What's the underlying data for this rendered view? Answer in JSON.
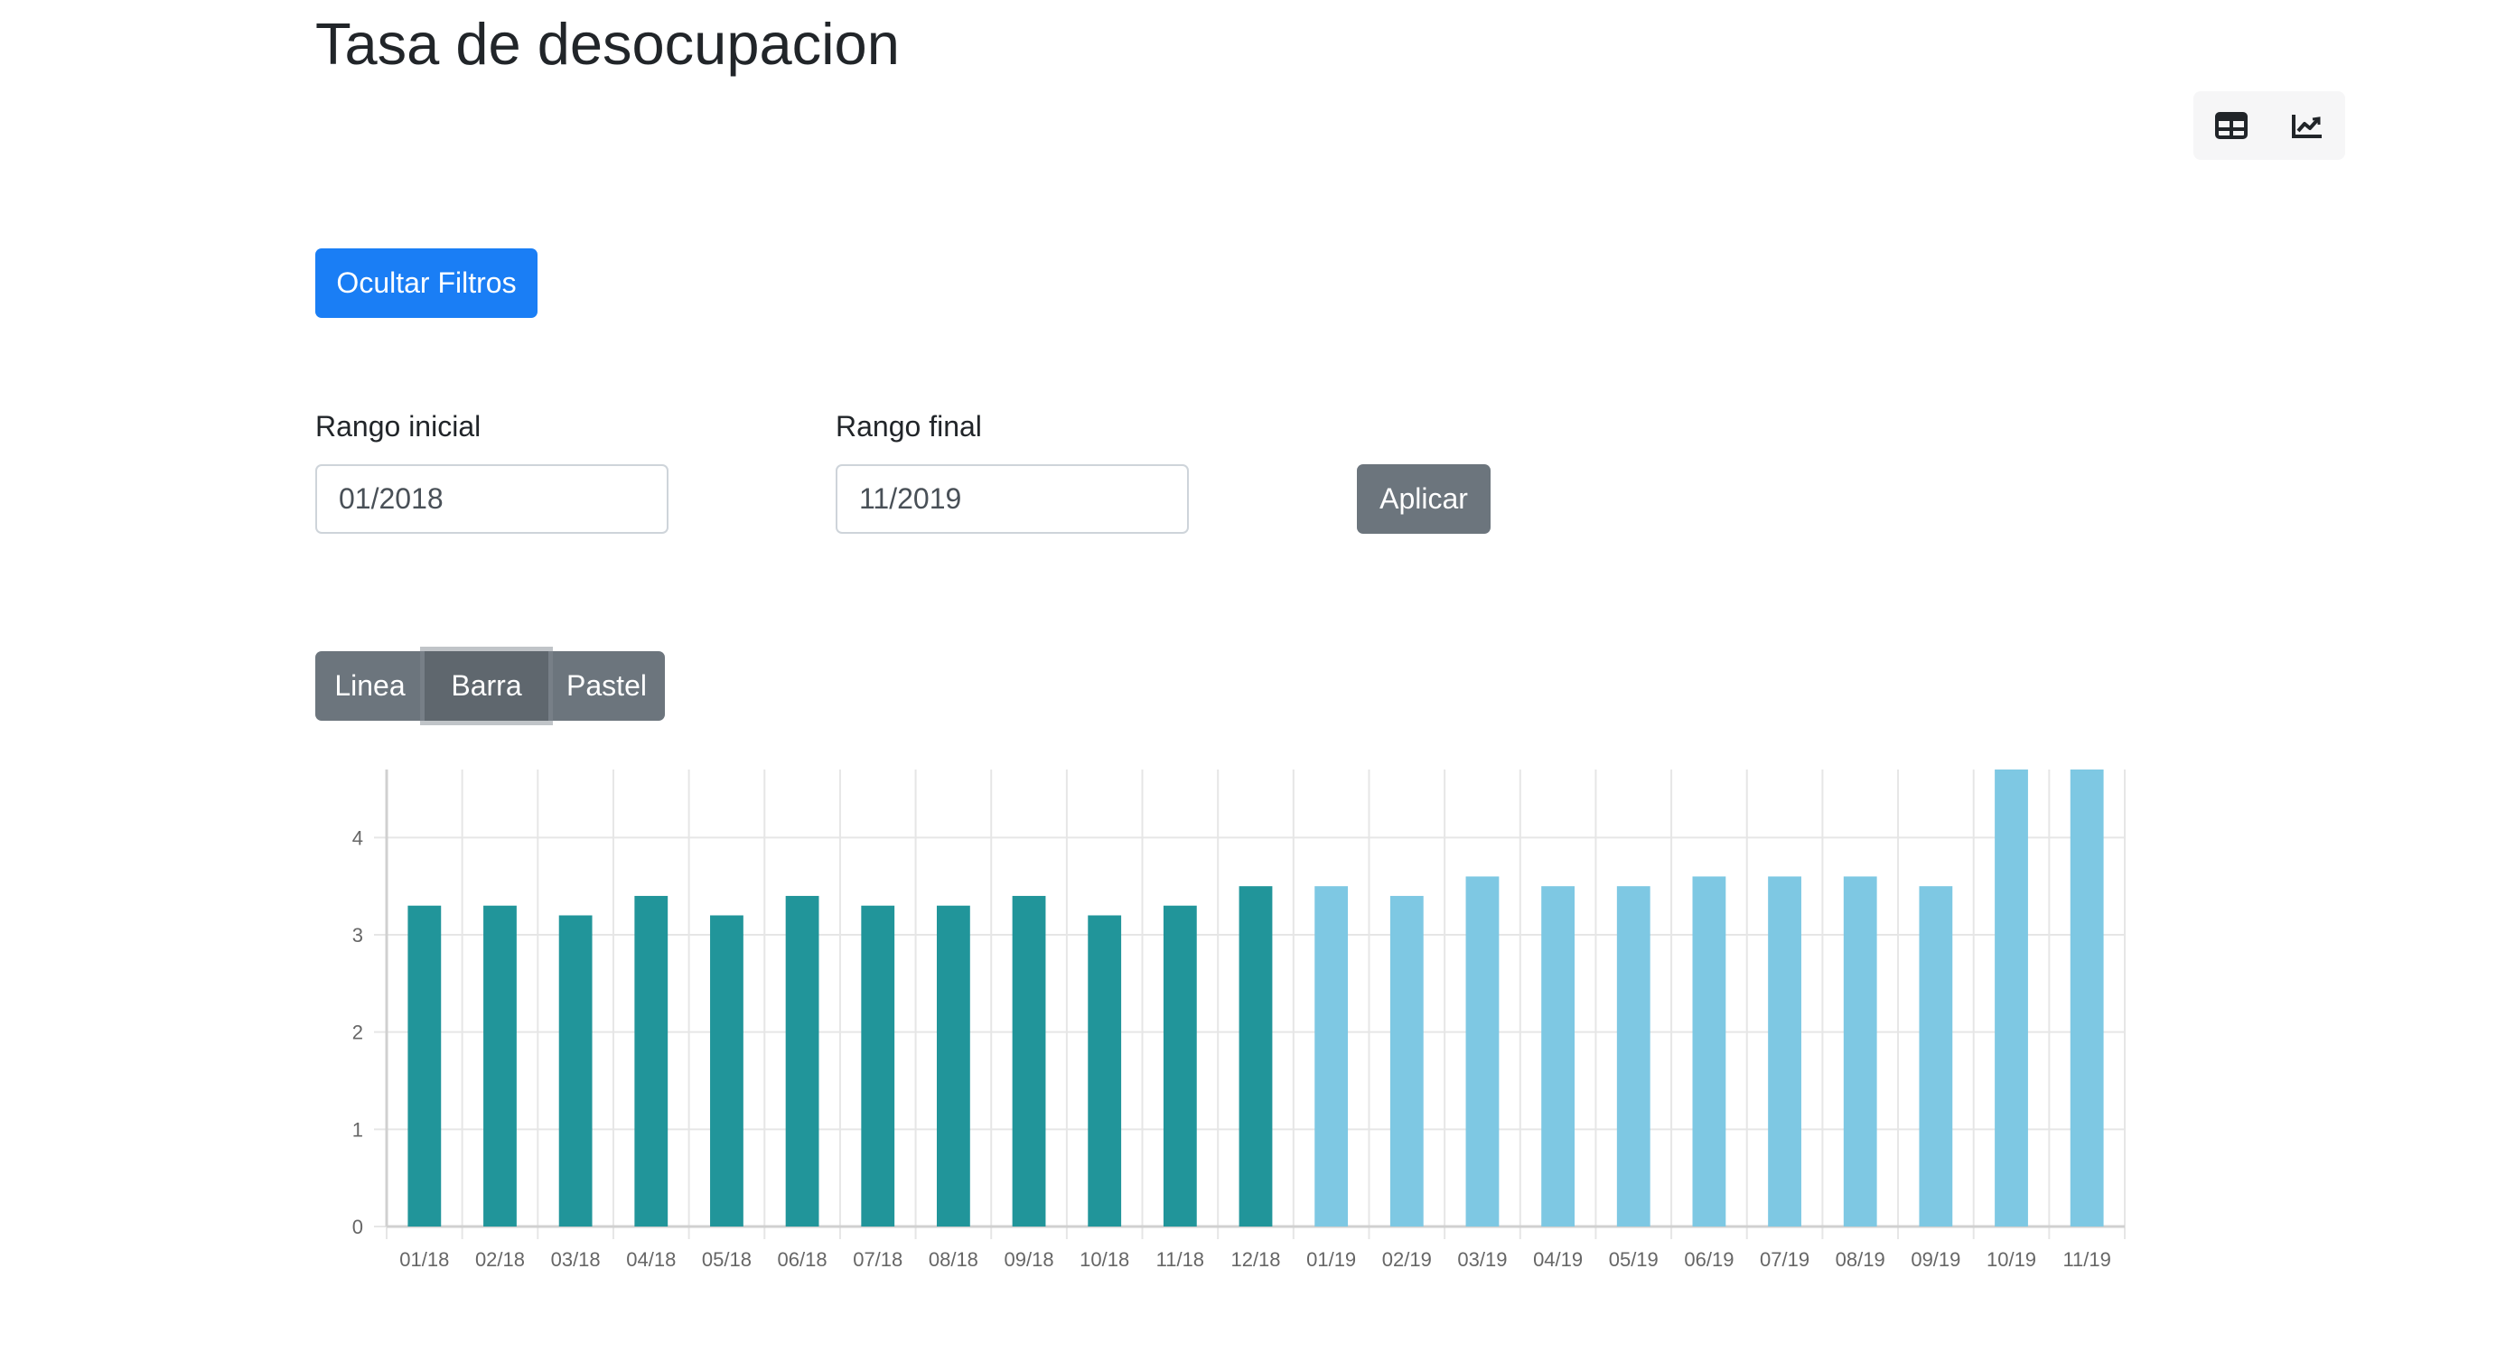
{
  "page": {
    "title": "Tasa de desocupacion"
  },
  "view_toggle": {
    "items": [
      {
        "icon": "table-icon",
        "selected": false
      },
      {
        "icon": "chart-line-icon",
        "selected": false
      }
    ]
  },
  "filters": {
    "toggle_label": "Ocultar Filtros",
    "start": {
      "label": "Rango inicial",
      "value": "01/2018"
    },
    "end": {
      "label": "Rango final",
      "value": "11/2019"
    },
    "apply_label": "Aplicar"
  },
  "chart_type_selector": {
    "options": [
      "Linea",
      "Barra",
      "Pastel"
    ],
    "selected": "Barra"
  },
  "colors": {
    "primary_button": "#1a7ef5",
    "secondary_button": "#6c757d",
    "bar_2018": "#21959a",
    "bar_2019": "#7ec8e3",
    "grid": "#e6e6e6",
    "axis_text": "#666666"
  },
  "chart_data": {
    "type": "bar",
    "categories": [
      "01/18",
      "02/18",
      "03/18",
      "04/18",
      "05/18",
      "06/18",
      "07/18",
      "08/18",
      "09/18",
      "10/18",
      "11/18",
      "12/18",
      "01/19",
      "02/19",
      "03/19",
      "04/19",
      "05/19",
      "06/19",
      "07/19",
      "08/19",
      "09/19",
      "10/19",
      "11/19"
    ],
    "series": [
      {
        "values": [
          3.3,
          3.3,
          3.2,
          3.4,
          3.2,
          3.4,
          3.3,
          3.3,
          3.4,
          3.2,
          3.3,
          3.5,
          null,
          null,
          null,
          null,
          null,
          null,
          null,
          null,
          null,
          null,
          null
        ],
        "color": "#21959a"
      },
      {
        "values": [
          null,
          null,
          null,
          null,
          null,
          null,
          null,
          null,
          null,
          null,
          null,
          null,
          3.5,
          3.4,
          3.6,
          3.5,
          3.5,
          3.6,
          3.6,
          3.6,
          3.5,
          4.7,
          4.7
        ],
        "color": "#7ec8e3"
      }
    ],
    "yticks": [
      0,
      1,
      2,
      3,
      4
    ],
    "ylim": [
      0,
      4.7
    ],
    "grid": true,
    "xlabel": "",
    "ylabel": ""
  }
}
